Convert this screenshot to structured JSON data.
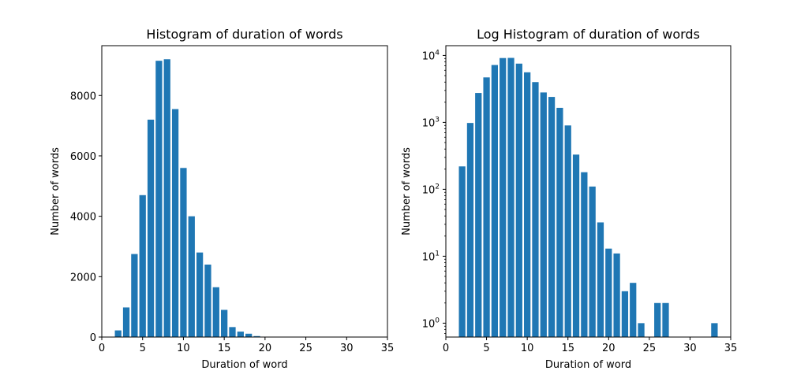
{
  "chart_data": [
    {
      "type": "bar",
      "title": "Histogram of duration of words",
      "xlabel": "Duration of word",
      "ylabel": "Number of words",
      "xlim": [
        0,
        35
      ],
      "ylim": [
        0,
        9650
      ],
      "yscale": "linear",
      "grid": false,
      "legend": "none",
      "bar_color": "#1f77b4",
      "xticks": [
        0,
        5,
        10,
        15,
        20,
        25,
        30,
        35
      ],
      "yticks": [
        0,
        2000,
        4000,
        6000,
        8000
      ],
      "x": [
        2,
        3,
        4,
        5,
        6,
        7,
        8,
        9,
        10,
        11,
        12,
        13,
        14,
        15,
        16,
        17,
        18,
        19,
        20,
        21,
        22,
        23,
        24,
        26,
        27,
        33
      ],
      "values": [
        220,
        980,
        2750,
        4700,
        7200,
        9150,
        9200,
        7550,
        5600,
        4000,
        2800,
        2400,
        1650,
        900,
        330,
        180,
        110,
        32,
        13,
        11,
        3,
        4,
        1,
        2,
        2,
        1
      ]
    },
    {
      "type": "bar",
      "title": "Log Histogram of duration of words",
      "xlabel": "Duration of word",
      "ylabel": "Number of words",
      "xlim": [
        0,
        35
      ],
      "ylim": [
        0.62,
        14000
      ],
      "yscale": "log",
      "grid": false,
      "legend": "none",
      "bar_color": "#1f77b4",
      "xticks": [
        0,
        5,
        10,
        15,
        20,
        25,
        30,
        35
      ],
      "yticks": [
        1,
        10,
        100,
        1000,
        10000
      ],
      "x": [
        2,
        3,
        4,
        5,
        6,
        7,
        8,
        9,
        10,
        11,
        12,
        13,
        14,
        15,
        16,
        17,
        18,
        19,
        20,
        21,
        22,
        23,
        24,
        26,
        27,
        33
      ],
      "values": [
        220,
        980,
        2750,
        4700,
        7200,
        9150,
        9200,
        7550,
        5600,
        4000,
        2800,
        2400,
        1650,
        900,
        330,
        180,
        110,
        32,
        13,
        11,
        3,
        4,
        1,
        2,
        2,
        1
      ]
    }
  ]
}
